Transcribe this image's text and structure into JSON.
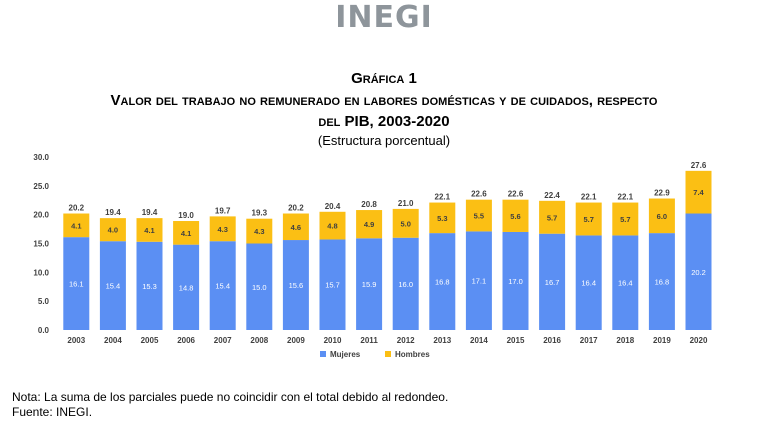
{
  "header": {
    "logo_text": "INEGI"
  },
  "chart_data": {
    "type": "bar",
    "stacked": true,
    "title_line1": "Gráfica 1",
    "title_line2": "Valor del trabajo no remunerado en labores domésticas y de cuidados, respecto",
    "title_line3": "del PIB, 2003-2020",
    "subtitle": "(Estructura porcentual)",
    "categories": [
      "2003",
      "2004",
      "2005",
      "2006",
      "2007",
      "2008",
      "2009",
      "2010",
      "2011",
      "2012",
      "2013",
      "2014",
      "2015",
      "2016",
      "2017",
      "2018",
      "2019",
      "2020"
    ],
    "series": [
      {
        "name": "Mujeres",
        "color": "#5b8ff3",
        "values": [
          16.1,
          15.4,
          15.3,
          14.8,
          15.4,
          15.0,
          15.6,
          15.7,
          15.9,
          16.0,
          16.8,
          17.1,
          17.0,
          16.7,
          16.4,
          16.4,
          16.8,
          20.2
        ]
      },
      {
        "name": "Hombres",
        "color": "#fbbf14",
        "values": [
          4.1,
          4.0,
          4.1,
          4.1,
          4.3,
          4.3,
          4.6,
          4.8,
          4.9,
          5.0,
          5.3,
          5.5,
          5.6,
          5.7,
          5.7,
          5.7,
          6.0,
          7.4
        ]
      }
    ],
    "totals": [
      20.2,
      19.4,
      19.4,
      19.0,
      19.7,
      19.3,
      20.2,
      20.4,
      20.8,
      21.0,
      22.1,
      22.6,
      22.6,
      22.4,
      22.1,
      22.1,
      22.9,
      27.6
    ],
    "y_ticks": [
      "0.0",
      "5.0",
      "10.0",
      "15.0",
      "20.0",
      "25.0",
      "30.0"
    ],
    "ylim": [
      0,
      30
    ],
    "legend_position": "bottom-center"
  },
  "footer": {
    "note": "Nota: La suma de los parciales puede no coincidir con el total debido al redondeo.",
    "source": "Fuente: INEGI."
  }
}
